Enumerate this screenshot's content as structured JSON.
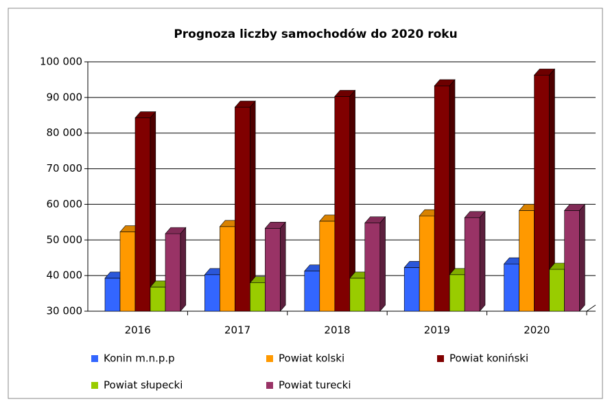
{
  "chart_data": {
    "type": "bar3d",
    "title": "Prognoza liczby samochodów do 2020 roku",
    "categories": [
      "2016",
      "2017",
      "2018",
      "2019",
      "2020"
    ],
    "series": [
      {
        "name": "Konin m.n.p.p",
        "color": "#3366ff",
        "values": [
          41000,
          42000,
          43000,
          44000,
          45000
        ]
      },
      {
        "name": "Powiat kolski",
        "color": "#ff9900",
        "values": [
          54000,
          55500,
          57000,
          58500,
          60000
        ]
      },
      {
        "name": "Powiat koniński",
        "color": "#800000",
        "values": [
          86000,
          89000,
          92000,
          95000,
          98000
        ]
      },
      {
        "name": "Powiat słupecki",
        "color": "#99cc00",
        "values": [
          38500,
          39700,
          41000,
          42000,
          43500
        ]
      },
      {
        "name": "Powiat turecki",
        "color": "#993366",
        "values": [
          53500,
          55000,
          56500,
          58000,
          60000
        ]
      }
    ],
    "ylim": [
      30000,
      100000
    ],
    "yticks": [
      {
        "value": 30000,
        "label": "30 000"
      },
      {
        "value": 40000,
        "label": "40 000"
      },
      {
        "value": 50000,
        "label": "50 000"
      },
      {
        "value": 60000,
        "label": "60 000"
      },
      {
        "value": 70000,
        "label": "70 000"
      },
      {
        "value": 80000,
        "label": "80 000"
      },
      {
        "value": 90000,
        "label": "90 000"
      },
      {
        "value": 100000,
        "label": "100 000"
      }
    ],
    "grid": true,
    "legend": "bottom"
  }
}
